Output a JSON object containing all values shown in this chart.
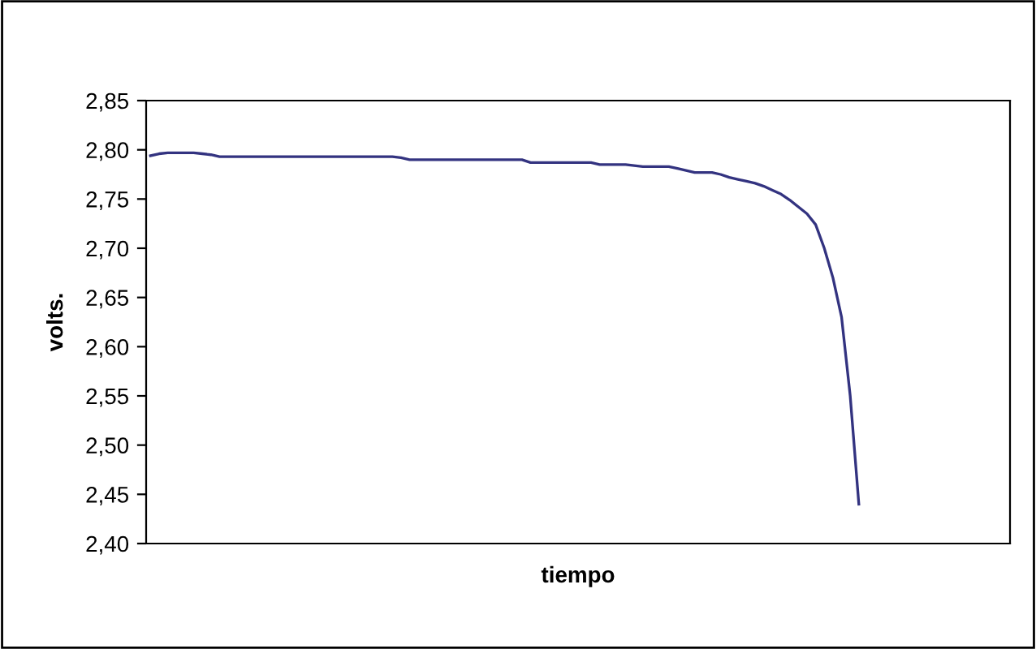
{
  "chart_data": {
    "type": "line",
    "xlabel": "tiempo",
    "ylabel": "volts.",
    "categories": [
      null,
      null,
      null,
      null,
      null,
      null,
      null,
      null,
      null,
      null,
      null,
      null,
      null,
      null,
      null,
      null,
      null,
      null,
      null,
      null,
      null,
      null,
      null,
      null,
      null,
      null,
      null,
      null,
      null,
      null,
      null,
      null,
      null,
      null,
      null,
      null,
      null,
      null,
      null,
      null,
      null,
      null,
      null,
      null,
      null,
      null,
      null,
      null,
      null,
      null,
      null,
      null,
      null,
      null,
      null,
      null,
      null,
      null,
      null,
      null,
      null,
      null,
      null,
      null,
      null,
      null,
      null,
      null,
      null,
      null,
      null,
      null,
      null,
      null,
      null,
      null,
      null,
      null,
      null,
      null,
      null,
      null,
      null,
      null,
      null,
      null,
      null,
      null,
      null,
      null,
      null,
      null,
      null,
      null,
      null,
      null,
      null,
      null,
      null,
      null
    ],
    "series": [
      {
        "color": "#333380",
        "values": [
          2.794,
          2.796,
          2.797,
          2.797,
          2.797,
          2.797,
          2.796,
          2.795,
          2.793,
          2.793,
          2.793,
          2.793,
          2.793,
          2.793,
          2.793,
          2.793,
          2.793,
          2.793,
          2.793,
          2.793,
          2.793,
          2.793,
          2.793,
          2.793,
          2.793,
          2.793,
          2.793,
          2.793,
          2.793,
          2.792,
          2.79,
          2.79,
          2.79,
          2.79,
          2.79,
          2.79,
          2.79,
          2.79,
          2.79,
          2.79,
          2.79,
          2.79,
          2.79,
          2.79,
          2.787,
          2.787,
          2.787,
          2.787,
          2.787,
          2.787,
          2.787,
          2.787,
          2.785,
          2.785,
          2.785,
          2.785,
          2.784,
          2.783,
          2.783,
          2.783,
          2.783,
          2.781,
          2.779,
          2.777,
          2.777,
          2.777,
          2.775,
          2.772,
          2.77,
          2.768,
          2.766,
          2.763,
          2.759,
          2.755,
          2.749,
          2.742,
          2.735,
          2.724,
          2.7,
          2.67,
          2.63,
          2.55,
          2.44,
          null,
          null,
          null,
          null,
          null,
          null,
          null,
          null,
          null,
          null,
          null,
          null,
          null,
          null,
          null,
          null,
          null
        ]
      }
    ],
    "ylim": [
      2.4,
      2.85
    ],
    "yticks": [
      {
        "value": 2.4,
        "label": "2,40"
      },
      {
        "value": 2.45,
        "label": "2,45"
      },
      {
        "value": 2.5,
        "label": "2,50"
      },
      {
        "value": 2.55,
        "label": "2,55"
      },
      {
        "value": 2.6,
        "label": "2,60"
      },
      {
        "value": 2.65,
        "label": "2,65"
      },
      {
        "value": 2.7,
        "label": "2,70"
      },
      {
        "value": 2.75,
        "label": "2,75"
      },
      {
        "value": 2.8,
        "label": "2,80"
      },
      {
        "value": 2.85,
        "label": "2,85"
      }
    ],
    "grid": false,
    "legend": false
  }
}
